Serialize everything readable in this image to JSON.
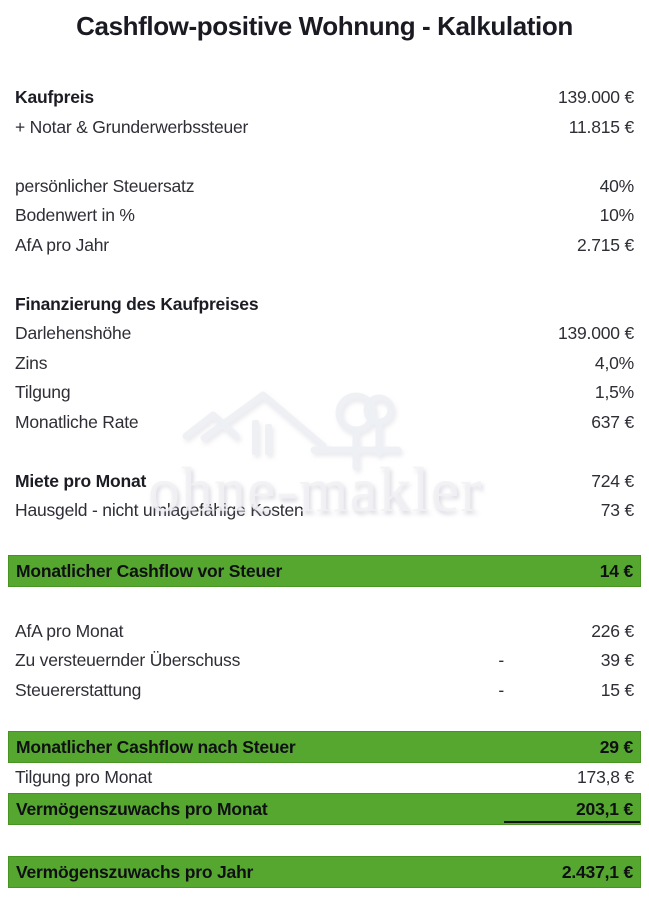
{
  "title": "Cashflow-positive Wohnung - Kalkulation",
  "watermark": {
    "text": "ohne-makler"
  },
  "colors": {
    "highlight_green": "#55a72f",
    "highlight_green_border": "#479423",
    "text_dark": "#1a1a22",
    "watermark_gray": "#f1f1f5"
  },
  "rows": [
    {
      "type": "row",
      "label": "Kaufpreis",
      "value": "139.000 €",
      "bold": true
    },
    {
      "type": "row",
      "label": "+ Notar & Grunderwerbssteuer",
      "value": "11.815 €"
    },
    {
      "type": "spacer"
    },
    {
      "type": "row",
      "label": "persönlicher Steuersatz",
      "value": "40%"
    },
    {
      "type": "row",
      "label": "Bodenwert in %",
      "value": "10%"
    },
    {
      "type": "row",
      "label": "AfA pro Jahr",
      "value": "2.715 €"
    },
    {
      "type": "spacer"
    },
    {
      "type": "row",
      "label": "Finanzierung des Kaufpreises",
      "value": "",
      "bold": true
    },
    {
      "type": "row",
      "label": "Darlehenshöhe",
      "value": "139.000 €"
    },
    {
      "type": "row",
      "label": "Zins",
      "value": "4,0%"
    },
    {
      "type": "row",
      "label": "Tilgung",
      "value": "1,5%"
    },
    {
      "type": "row",
      "label": "Monatliche Rate",
      "value": "637 €"
    },
    {
      "type": "spacer"
    },
    {
      "type": "row",
      "label": "Miete pro Monat",
      "value": "724 €",
      "bold": true
    },
    {
      "type": "row",
      "label": "Hausgeld - nicht umlagefähige Kosten",
      "value": "73 €"
    },
    {
      "type": "spacer"
    },
    {
      "type": "green",
      "label": "Monatlicher Cashflow vor Steuer",
      "value": "14 €"
    },
    {
      "type": "spacer"
    },
    {
      "type": "row",
      "label": "AfA pro Monat",
      "value": "226 €"
    },
    {
      "type": "row",
      "label": "Zu versteuernder Überschuss",
      "value": "39 €",
      "minus": "-"
    },
    {
      "type": "row",
      "label": "Steuererstattung",
      "value": "15 €",
      "minus": "-"
    },
    {
      "type": "spacer",
      "h": 26
    },
    {
      "type": "green",
      "label": "Monatlicher Cashflow nach Steuer",
      "value": "29 €"
    },
    {
      "type": "row",
      "label": "Tilgung pro Monat",
      "value": "173,8 €"
    },
    {
      "type": "green",
      "label": "Vermögenszuwachs pro Monat",
      "value": "203,1 €",
      "underline": true
    },
    {
      "type": "spacer",
      "h": 31
    },
    {
      "type": "green",
      "label": "Vermögenszuwachs pro Jahr",
      "value": "2.437,1 €"
    }
  ]
}
